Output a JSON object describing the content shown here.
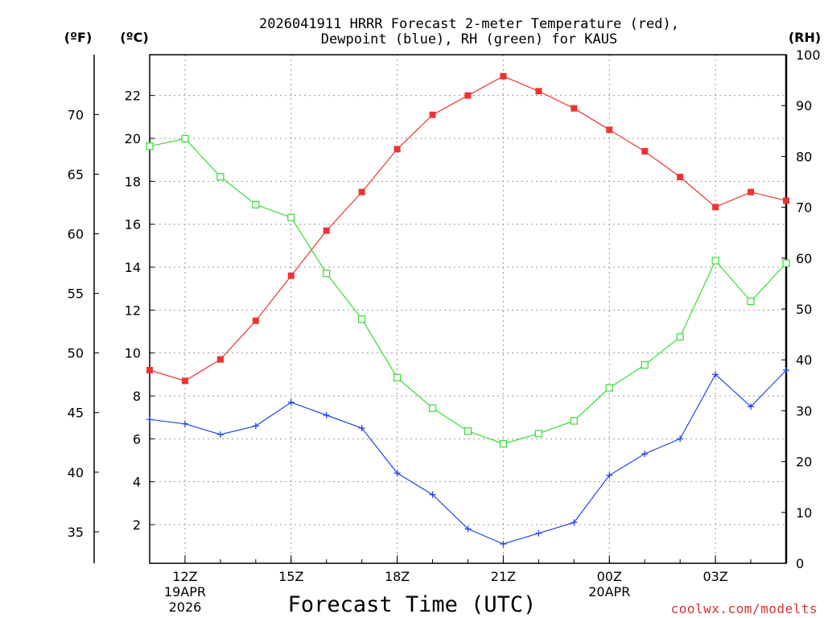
{
  "chart_data": {
    "type": "line",
    "title_lines": [
      "2026041911 HRRR Forecast 2-meter Temperature (red),",
      "Dewpoint (blue), RH (green) for KAUS"
    ],
    "xlabel": "Forecast Time (UTC)",
    "x_hours": [
      11,
      12,
      13,
      14,
      15,
      16,
      17,
      18,
      19,
      20,
      21,
      22,
      23,
      24,
      25,
      26,
      27,
      28,
      29
    ],
    "x_ticks": [
      {
        "hour": 12,
        "lines": [
          "12Z",
          "19APR",
          "2026"
        ]
      },
      {
        "hour": 15,
        "lines": [
          "15Z"
        ]
      },
      {
        "hour": 18,
        "lines": [
          "18Z"
        ]
      },
      {
        "hour": 21,
        "lines": [
          "21Z"
        ]
      },
      {
        "hour": 24,
        "lines": [
          "00Z",
          "20APR"
        ]
      },
      {
        "hour": 27,
        "lines": [
          "03Z"
        ]
      }
    ],
    "xlim": [
      11,
      29
    ],
    "left_axis_c": {
      "unit": "(ºC)",
      "ylim": [
        0.2,
        23.9
      ],
      "ticks": [
        2,
        4,
        6,
        8,
        10,
        12,
        14,
        16,
        18,
        20,
        22
      ]
    },
    "left_axis_f": {
      "unit": "(ºF)",
      "ticks": [
        35,
        40,
        45,
        50,
        55,
        60,
        65,
        70
      ]
    },
    "right_axis_rh": {
      "unit": "(RH)",
      "ylim": [
        0,
        100
      ],
      "ticks": [
        0,
        10,
        20,
        30,
        40,
        50,
        60,
        70,
        80,
        90,
        100
      ]
    },
    "series": [
      {
        "name": "Temperature",
        "axis": "C",
        "color": "#ee3333",
        "marker": "filled-square",
        "values": [
          9.2,
          8.7,
          9.7,
          11.5,
          13.6,
          15.7,
          17.5,
          19.5,
          21.1,
          22.0,
          22.9,
          22.2,
          21.4,
          20.4,
          19.4,
          18.2,
          16.8,
          17.5,
          17.1
        ]
      },
      {
        "name": "Dewpoint",
        "axis": "C",
        "color": "#2244ee",
        "marker": "plus",
        "values": [
          6.9,
          6.7,
          6.2,
          6.6,
          7.7,
          7.1,
          6.5,
          4.4,
          3.4,
          1.8,
          1.1,
          1.6,
          2.1,
          4.3,
          5.3,
          6.0,
          9.0,
          7.5,
          9.2
        ]
      },
      {
        "name": "RH",
        "axis": "RH",
        "color": "#33dd33",
        "marker": "open-square",
        "values": [
          82,
          83.5,
          76,
          70.5,
          68,
          57,
          48,
          36.5,
          30.5,
          26,
          23.5,
          25.5,
          28,
          34.5,
          39,
          44.5,
          59.5,
          51.5,
          59
        ]
      }
    ]
  },
  "credit": "coolwx.com/modelts"
}
